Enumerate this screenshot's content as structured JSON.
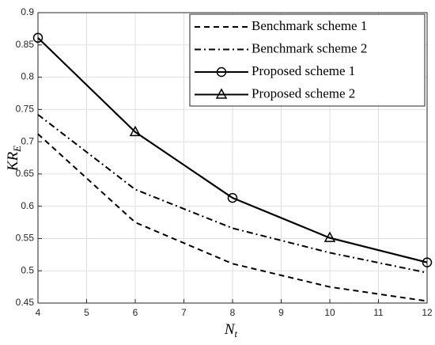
{
  "chart_data": {
    "type": "line",
    "x": [
      4,
      6,
      8,
      10,
      12
    ],
    "xlabel": "N",
    "xlabel_sub": "t",
    "ylabel": "KR",
    "ylabel_sub": "E",
    "xlim": [
      4,
      12
    ],
    "xticks": [
      4,
      5,
      6,
      7,
      8,
      9,
      10,
      11,
      12
    ],
    "ylim": [
      0.45,
      0.9
    ],
    "yticks": [
      0.45,
      0.5,
      0.55,
      0.6,
      0.65,
      0.7,
      0.75,
      0.8,
      0.85,
      0.9
    ],
    "grid": true,
    "legend": "upper right",
    "series": [
      {
        "name": "Benchmark scheme 1",
        "color": "#000000",
        "dash": "dashed",
        "values": [
          0.712,
          0.575,
          0.511,
          0.475,
          0.453
        ]
      },
      {
        "name": "Benchmark scheme 2",
        "color": "#000000",
        "dash": "dashdot",
        "values": [
          0.742,
          0.626,
          0.566,
          0.528,
          0.497
        ]
      },
      {
        "name": "Proposed scheme 1",
        "color": "#000000",
        "dash": "solid",
        "marker": "circle",
        "marker_every": [
          0,
          2,
          4
        ],
        "values": [
          0.861,
          0.715,
          0.613,
          0.551,
          0.513
        ]
      },
      {
        "name": "Proposed scheme 2",
        "color": "#000000",
        "dash": "solid",
        "marker": "triangle",
        "marker_every": [
          1,
          3
        ],
        "values": [
          0.861,
          0.715,
          0.613,
          0.551,
          0.513
        ]
      }
    ]
  }
}
